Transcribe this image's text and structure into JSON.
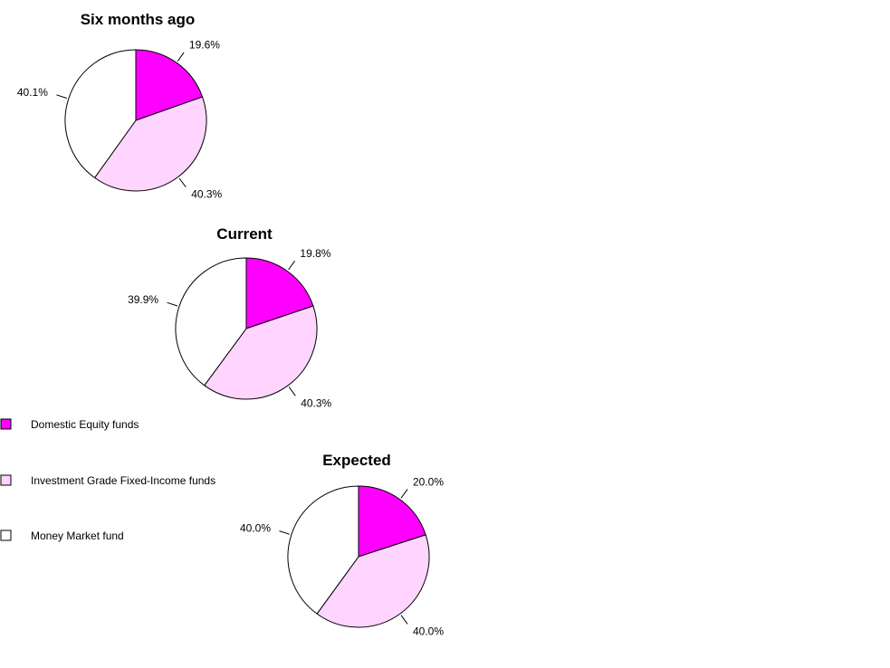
{
  "chart_data": [
    {
      "type": "pie",
      "title": "Six months ago",
      "labels": [
        "Domestic Equity funds",
        "Investment Grade Fixed-Income funds",
        "Money Market fund"
      ],
      "values": [
        19.6,
        40.3,
        40.1
      ],
      "value_labels": [
        "19.6%",
        "40.3%",
        "40.1%"
      ]
    },
    {
      "type": "pie",
      "title": "Current",
      "labels": [
        "Domestic Equity funds",
        "Investment Grade Fixed-Income funds",
        "Money Market fund"
      ],
      "values": [
        19.8,
        40.3,
        39.9
      ],
      "value_labels": [
        "19.8%",
        "40.3%",
        "39.9%"
      ]
    },
    {
      "type": "pie",
      "title": "Expected",
      "labels": [
        "Domestic Equity funds",
        "Investment Grade Fixed-Income funds",
        "Money Market fund"
      ],
      "values": [
        20.0,
        40.0,
        40.0
      ],
      "value_labels": [
        "20.0%",
        "40.0%",
        "40.0%"
      ]
    }
  ],
  "legend": {
    "items": [
      {
        "label": "Domestic Equity funds",
        "color": "#ff00ff"
      },
      {
        "label": "Investment Grade Fixed-Income funds",
        "color": "#ffd5ff"
      },
      {
        "label": "Money Market fund",
        "color": "#ffffff"
      }
    ]
  },
  "slice_colors": [
    "#ff00ff",
    "#ffd5ff",
    "#ffffff"
  ]
}
